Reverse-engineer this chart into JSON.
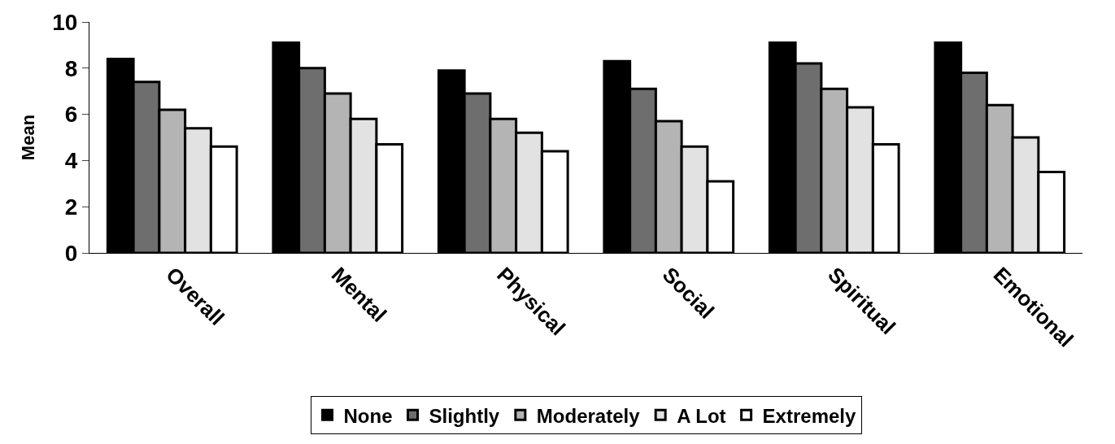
{
  "chart_data": {
    "type": "bar",
    "ylabel": "Mean",
    "categories": [
      "Overall",
      "Mental",
      "Physical",
      "Social",
      "Spiritual",
      "Emotional"
    ],
    "series": [
      {
        "name": "None",
        "color": "#000000",
        "values": [
          8.4,
          9.1,
          7.9,
          8.3,
          9.1,
          9.1
        ]
      },
      {
        "name": "Slightly",
        "color": "#6e6e6e",
        "values": [
          7.4,
          8.0,
          6.9,
          7.1,
          8.2,
          7.8
        ]
      },
      {
        "name": "Moderately",
        "color": "#b4b4b4",
        "values": [
          6.2,
          6.9,
          5.8,
          5.7,
          7.1,
          6.4
        ]
      },
      {
        "name": "A Lot",
        "color": "#e2e2e2",
        "values": [
          5.4,
          5.8,
          5.2,
          4.6,
          6.3,
          5.0
        ]
      },
      {
        "name": "Extremely",
        "color": "#ffffff",
        "values": [
          4.6,
          4.7,
          4.4,
          3.1,
          4.7,
          3.5
        ]
      }
    ],
    "ylim": [
      0,
      10
    ],
    "yticks": [
      0,
      2,
      4,
      6,
      8,
      10
    ],
    "grid": false,
    "legend": "bottom"
  }
}
